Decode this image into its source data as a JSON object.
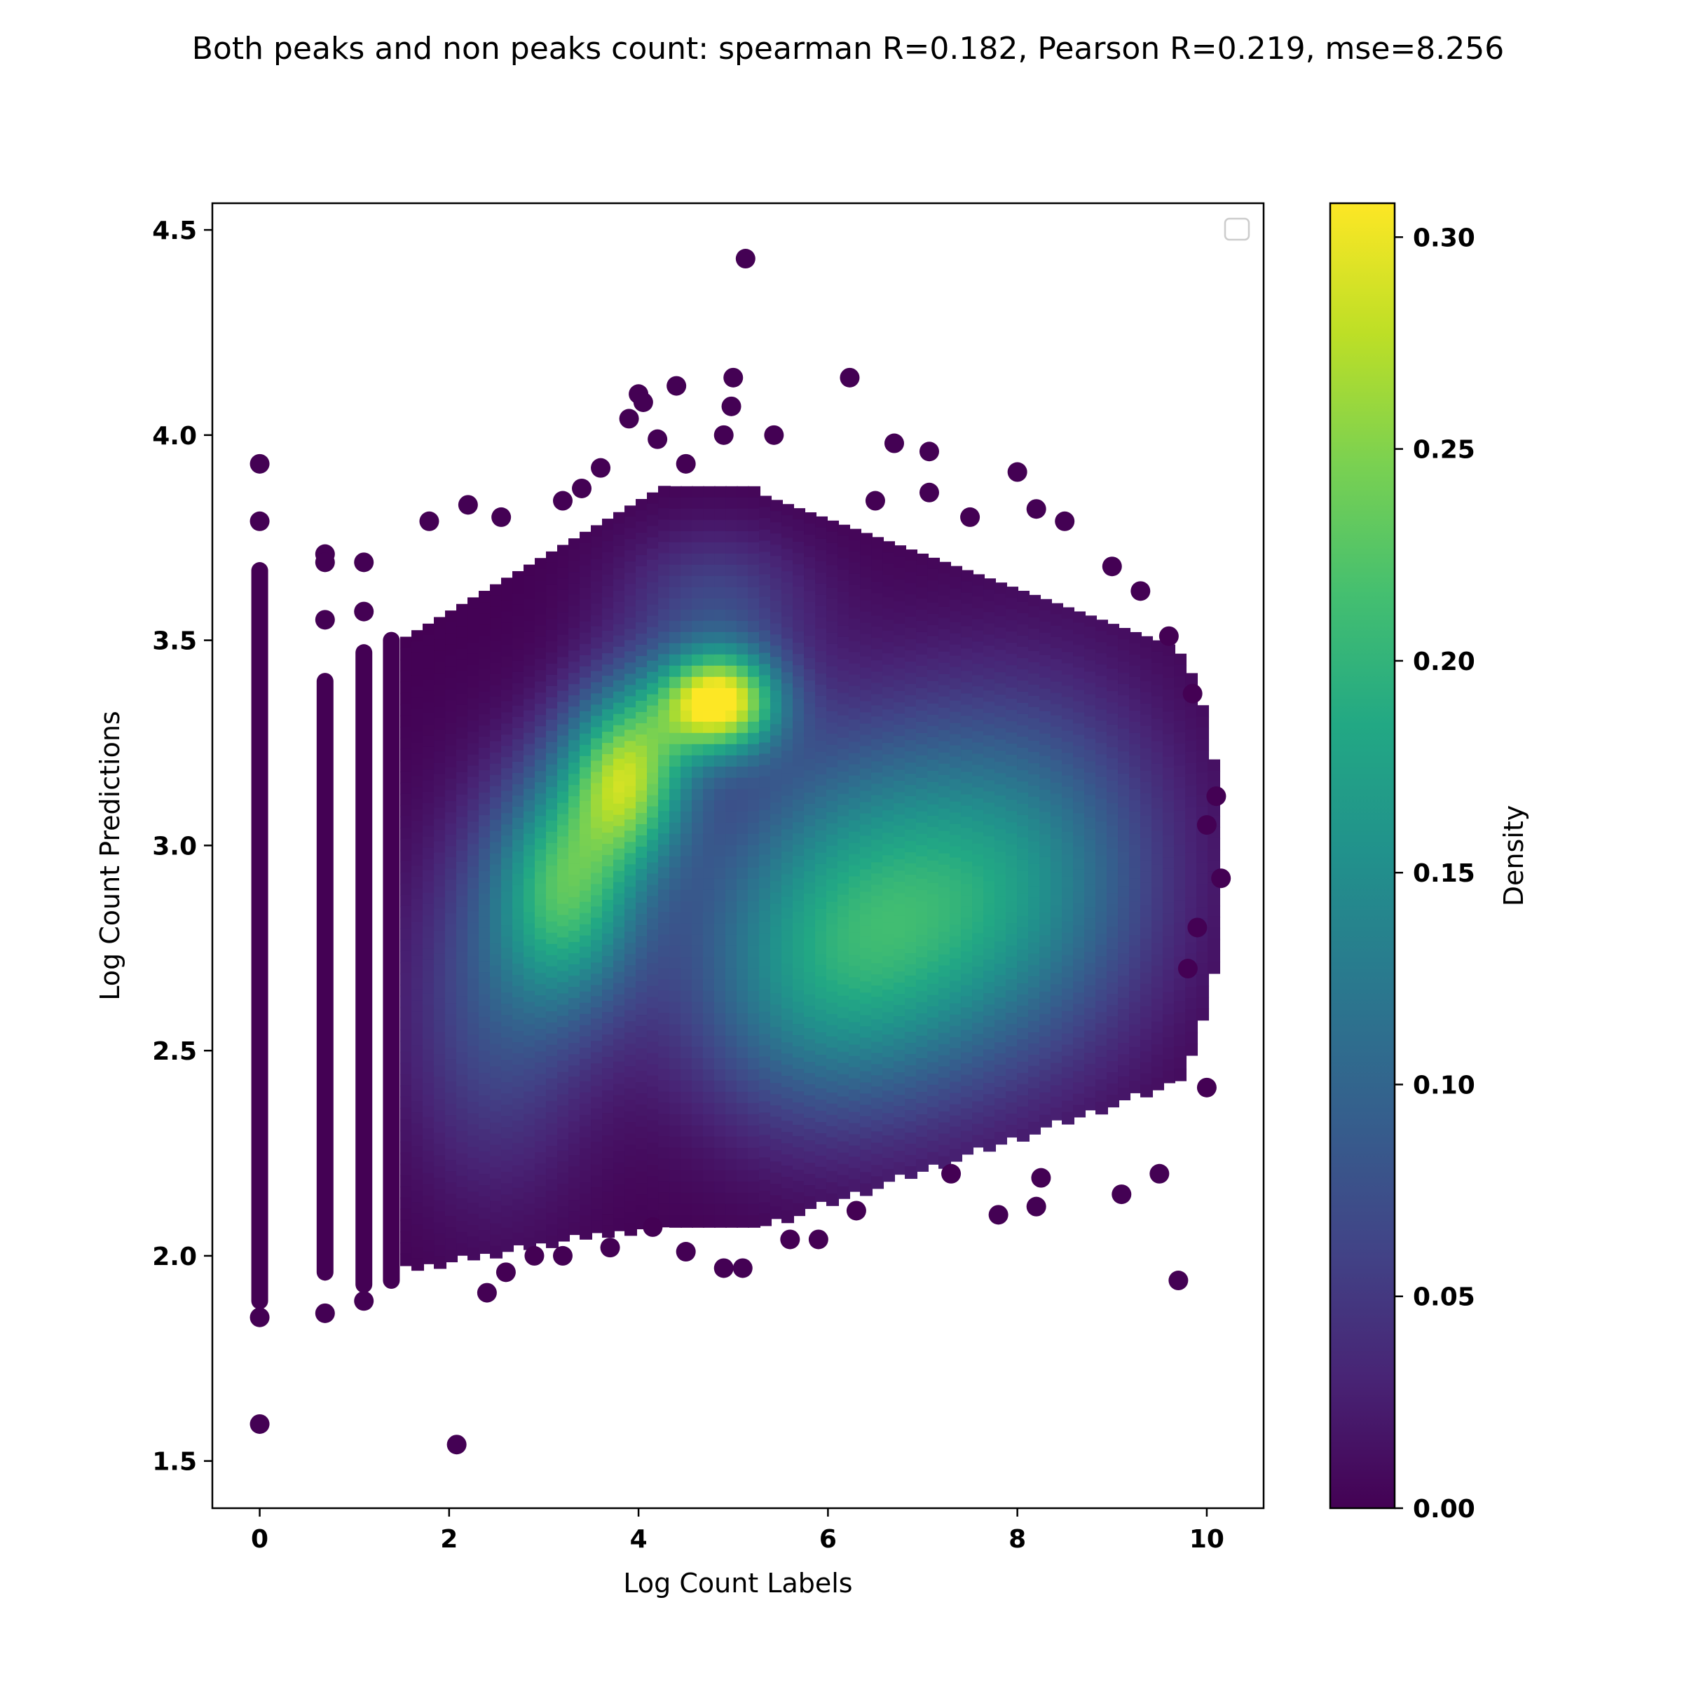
{
  "chart_data": {
    "type": "scatter",
    "title": "Both peaks and non peaks count: spearman R=0.182, Pearson R=0.219, mse=8.256",
    "xlabel": "Log Count Labels",
    "ylabel": "Log Count Predictions",
    "xlim": [
      -0.5,
      10.6
    ],
    "ylim": [
      1.385,
      4.565
    ],
    "xticks": [
      0,
      2,
      4,
      6,
      8,
      10
    ],
    "xtick_labels": [
      "0",
      "2",
      "4",
      "6",
      "8",
      "10"
    ],
    "yticks": [
      1.5,
      2.0,
      2.5,
      3.0,
      3.5,
      4.0,
      4.5
    ],
    "ytick_labels": [
      "1.5",
      "2.0",
      "2.5",
      "3.0",
      "3.5",
      "4.0",
      "4.5"
    ],
    "grid": false,
    "legend": {
      "placement": "upper right",
      "entries": []
    },
    "colorbar": {
      "label": "Density",
      "colormap": "viridis",
      "range": [
        0.0,
        0.308
      ],
      "ticks": [
        0.0,
        0.05,
        0.1,
        0.15,
        0.2,
        0.25,
        0.3
      ],
      "tick_labels": [
        "0.00",
        "0.05",
        "0.10",
        "0.15",
        "0.20",
        "0.25",
        "0.30"
      ]
    },
    "point_color_low": "#440154",
    "density_components": [
      {
        "x": 4.85,
        "y": 3.35,
        "sx": 0.45,
        "sy": 0.09,
        "w": 0.3
      },
      {
        "x": 3.9,
        "y": 3.18,
        "sx": 0.45,
        "sy": 0.15,
        "w": 0.23
      },
      {
        "x": 3.25,
        "y": 2.9,
        "sx": 0.55,
        "sy": 0.2,
        "w": 0.19
      },
      {
        "x": 6.6,
        "y": 2.85,
        "sx": 1.3,
        "sy": 0.3,
        "w": 0.17
      },
      {
        "x": 5.8,
        "y": 2.6,
        "sx": 1.0,
        "sy": 0.22,
        "w": 0.06
      },
      {
        "x": 2.5,
        "y": 2.6,
        "sx": 0.7,
        "sy": 0.3,
        "w": 0.07
      },
      {
        "x": 8.3,
        "y": 2.95,
        "sx": 1.0,
        "sy": 0.3,
        "w": 0.08
      },
      {
        "x": 4.8,
        "y": 3.6,
        "sx": 0.7,
        "sy": 0.12,
        "w": 0.06
      }
    ],
    "outliers": [
      [
        0,
        3.93
      ],
      [
        0,
        3.79
      ],
      [
        0,
        1.85
      ],
      [
        0,
        1.59
      ],
      [
        0.69,
        3.71
      ],
      [
        0.69,
        3.69
      ],
      [
        0.69,
        3.55
      ],
      [
        0.69,
        1.86
      ],
      [
        1.1,
        3.69
      ],
      [
        1.1,
        3.57
      ],
      [
        1.1,
        1.89
      ],
      [
        1.79,
        3.79
      ],
      [
        2.08,
        1.54
      ],
      [
        2.2,
        3.83
      ],
      [
        2.4,
        1.91
      ],
      [
        3.9,
        4.04
      ],
      [
        4.0,
        4.1
      ],
      [
        4.05,
        4.08
      ],
      [
        4.4,
        4.12
      ],
      [
        4.2,
        3.99
      ],
      [
        4.5,
        3.93
      ],
      [
        4.9,
        4.0
      ],
      [
        5.0,
        4.14
      ],
      [
        4.98,
        4.07
      ],
      [
        5.13,
        4.43
      ],
      [
        5.43,
        4.0
      ],
      [
        6.23,
        4.14
      ],
      [
        6.7,
        3.98
      ],
      [
        7.07,
        3.96
      ],
      [
        7.07,
        3.86
      ],
      [
        8.0,
        3.91
      ],
      [
        7.8,
        2.1
      ],
      [
        9.7,
        1.94
      ],
      [
        10.1,
        3.12
      ],
      [
        10.15,
        2.92
      ],
      [
        10.0,
        2.41
      ],
      [
        9.85,
        3.37
      ],
      [
        3.2,
        2.0
      ],
      [
        3.7,
        2.02
      ],
      [
        4.5,
        2.01
      ],
      [
        4.9,
        1.97
      ],
      [
        5.1,
        1.97
      ],
      [
        5.6,
        2.04
      ],
      [
        5.9,
        2.04
      ],
      [
        8.2,
        2.12
      ],
      [
        8.25,
        2.19
      ],
      [
        9.1,
        2.15
      ],
      [
        9.5,
        2.2
      ],
      [
        9.8,
        2.7
      ],
      [
        9.9,
        2.8
      ],
      [
        10.0,
        3.05
      ],
      [
        2.55,
        3.8
      ],
      [
        3.2,
        3.84
      ],
      [
        3.4,
        3.87
      ],
      [
        3.6,
        3.92
      ],
      [
        6.5,
        3.84
      ],
      [
        7.5,
        3.8
      ],
      [
        8.2,
        3.82
      ],
      [
        8.5,
        3.79
      ],
      [
        9.0,
        3.68
      ],
      [
        9.3,
        3.62
      ],
      [
        9.6,
        3.51
      ],
      [
        2.6,
        1.96
      ],
      [
        2.9,
        2.0
      ],
      [
        4.15,
        2.07
      ],
      [
        6.3,
        2.11
      ],
      [
        7.3,
        2.2
      ]
    ],
    "label_bands": [
      {
        "x": 0,
        "y_min": 1.89,
        "y_max": 3.67
      },
      {
        "x": 0.69,
        "y_min": 1.96,
        "y_max": 3.4
      },
      {
        "x": 1.1,
        "y_min": 1.93,
        "y_max": 3.47
      },
      {
        "x": 1.39,
        "y_min": 1.94,
        "y_max": 3.5
      }
    ]
  }
}
